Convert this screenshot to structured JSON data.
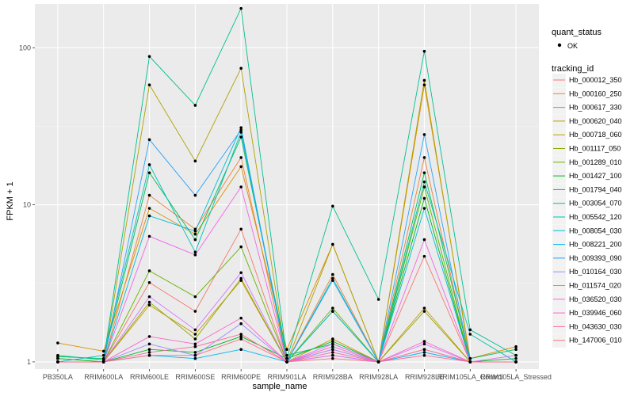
{
  "chart_data": {
    "type": "line",
    "title": "",
    "xlabel": "sample_name",
    "ylabel": "FPKM + 1",
    "y_scale": "log10",
    "ylim": [
      0.9,
      190
    ],
    "y_ticks": [
      1,
      10,
      100
    ],
    "y_tick_labels": [
      "1",
      "10",
      "100"
    ],
    "grid": true,
    "legend_position": "right",
    "categories": [
      "PB350LA",
      "RRIM600LA",
      "RRIM600LE",
      "RRIM600SE",
      "RRIM600PE",
      "RRIM901LA",
      "RRIM928BA",
      "RRIM928LA",
      "RRIM928LE",
      "RRIM105LA_Control",
      "RRIM105LA_Stressed"
    ],
    "shape_legend": {
      "title": "quant_status",
      "items": [
        "OK"
      ]
    },
    "legend_title": "tracking_id",
    "series": [
      {
        "name": "Hb_000012_350",
        "color": "#F8766D",
        "values": [
          1.0,
          1.0,
          3.2,
          2.1,
          7.0,
          1.0,
          1.2,
          1.0,
          4.7,
          1.0,
          1.0
        ]
      },
      {
        "name": "Hb_000160_250",
        "color": "#EC8239",
        "values": [
          1.0,
          1.0,
          11.5,
          7.0,
          20.0,
          1.0,
          3.6,
          1.0,
          20.0,
          1.0,
          1.0
        ]
      },
      {
        "name": "Hb_000617_330",
        "color": "#DB8E00",
        "values": [
          1.32,
          1.17,
          9.5,
          6.5,
          17.5,
          1.2,
          5.6,
          1.0,
          58.0,
          1.05,
          1.25
        ]
      },
      {
        "name": "Hb_000620_040",
        "color": "#C79800",
        "values": [
          1.0,
          1.0,
          2.3,
          1.5,
          3.3,
          1.0,
          1.4,
          1.0,
          2.2,
          1.0,
          1.0
        ]
      },
      {
        "name": "Hb_000718_060",
        "color": "#AEA200",
        "values": [
          1.0,
          1.0,
          58.0,
          19.0,
          74.0,
          1.0,
          5.6,
          1.0,
          62.0,
          1.0,
          1.0
        ]
      },
      {
        "name": "Hb_001117_050",
        "color": "#8FAA00",
        "values": [
          1.05,
          1.0,
          2.4,
          1.4,
          3.4,
          1.0,
          2.1,
          1.0,
          2.1,
          1.0,
          1.0
        ]
      },
      {
        "name": "Hb_001289_010",
        "color": "#64B200",
        "values": [
          1.0,
          1.0,
          3.8,
          2.6,
          5.4,
          1.0,
          2.2,
          1.0,
          13.0,
          1.0,
          1.0
        ]
      },
      {
        "name": "Hb_001427_100",
        "color": "#00B81B",
        "values": [
          1.05,
          1.0,
          1.2,
          1.15,
          1.45,
          1.05,
          1.35,
          1.0,
          11.0,
          1.0,
          1.05
        ]
      },
      {
        "name": "Hb_001794_040",
        "color": "#00BD5C",
        "values": [
          1.08,
          1.05,
          16.0,
          6.0,
          27.0,
          1.1,
          1.3,
          1.0,
          16.0,
          1.05,
          1.2
        ]
      },
      {
        "name": "Hb_003054_070",
        "color": "#00C08E",
        "values": [
          1.1,
          1.03,
          88.0,
          43.0,
          178.0,
          1.05,
          9.8,
          2.5,
          95.0,
          1.6,
          1.1
        ]
      },
      {
        "name": "Hb_005542_120",
        "color": "#00C1B2",
        "values": [
          1.0,
          1.1,
          18.0,
          5.0,
          29.0,
          1.0,
          3.4,
          1.0,
          14.0,
          1.5,
          1.0
        ]
      },
      {
        "name": "Hb_008054_030",
        "color": "#00BCD6",
        "values": [
          1.0,
          1.0,
          8.5,
          6.8,
          31.0,
          1.0,
          2.1,
          1.0,
          9.5,
          1.0,
          1.0
        ]
      },
      {
        "name": "Hb_008221_200",
        "color": "#00B3F2",
        "values": [
          1.0,
          1.0,
          1.1,
          1.05,
          1.2,
          1.0,
          1.1,
          1.0,
          1.15,
          1.0,
          1.0
        ]
      },
      {
        "name": "Hb_009393_090",
        "color": "#29A3FF",
        "values": [
          1.0,
          1.0,
          26.0,
          11.5,
          30.0,
          1.0,
          3.3,
          1.0,
          28.0,
          1.0,
          1.0
        ]
      },
      {
        "name": "Hb_010164_030",
        "color": "#9C8DFF",
        "values": [
          1.0,
          1.0,
          1.3,
          1.1,
          1.75,
          1.0,
          1.2,
          1.0,
          1.2,
          1.0,
          1.0
        ]
      },
      {
        "name": "Hb_011574_020",
        "color": "#D277FF",
        "values": [
          1.0,
          1.0,
          2.6,
          1.6,
          3.7,
          1.0,
          1.3,
          1.0,
          1.3,
          1.0,
          1.1
        ]
      },
      {
        "name": "Hb_036520_030",
        "color": "#F166E8",
        "values": [
          1.0,
          1.0,
          6.3,
          4.8,
          13.0,
          1.0,
          1.1,
          1.0,
          6.0,
          1.0,
          1.0
        ]
      },
      {
        "name": "Hb_039946_060",
        "color": "#FF61C7",
        "values": [
          1.0,
          1.0,
          1.45,
          1.3,
          1.9,
          1.0,
          1.25,
          1.0,
          1.35,
          1.0,
          1.0
        ]
      },
      {
        "name": "Hb_043630_030",
        "color": "#FF689E",
        "values": [
          1.0,
          1.0,
          1.15,
          1.25,
          1.5,
          1.0,
          1.15,
          1.0,
          1.1,
          1.0,
          1.0
        ]
      },
      {
        "name": "Hb_147006_010",
        "color": "#FC717F",
        "values": [
          1.0,
          1.0,
          1.1,
          1.1,
          1.4,
          1.0,
          1.05,
          1.0,
          1.2,
          1.0,
          1.0
        ]
      }
    ]
  }
}
